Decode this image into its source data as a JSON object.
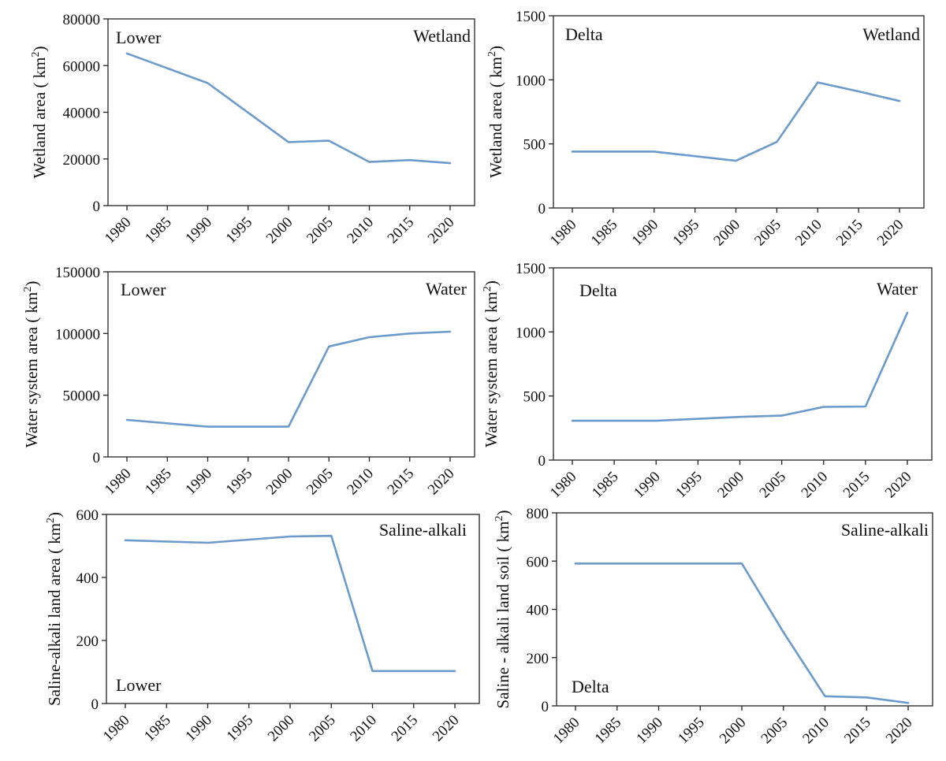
{
  "style": {
    "line_color": "#6b9acb",
    "axis_color": "#222222"
  },
  "chart_data": [
    {
      "type": "line",
      "x": [
        1980,
        1990,
        2000,
        2005,
        2010,
        2015,
        2020
      ],
      "xticks": [
        "1980",
        "1985",
        "1990",
        "1995",
        "2000",
        "2005",
        "2010",
        "2015",
        "2020"
      ],
      "series": [
        {
          "values": [
            65200,
            52500,
            27200,
            27800,
            18700,
            19500,
            18200
          ]
        }
      ],
      "ylim": [
        0,
        80000
      ],
      "yticks": [
        "0",
        "20000",
        "40000",
        "60000",
        "80000"
      ],
      "ylabel": "Wetland area ( km²)",
      "annotations": [
        "Lower",
        "Wetland"
      ]
    },
    {
      "type": "line",
      "x": [
        1980,
        1990,
        2000,
        2005,
        2010,
        2015,
        2020
      ],
      "xticks": [
        "1980",
        "1985",
        "1990",
        "1995",
        "2000",
        "2005",
        "2010",
        "2015",
        "2020"
      ],
      "series": [
        {
          "values": [
            440,
            440,
            368,
            515,
            980,
            910,
            835
          ]
        }
      ],
      "ylim": [
        0,
        1500
      ],
      "yticks": [
        "0",
        "500",
        "1000",
        "1500"
      ],
      "ylabel": "Wetland area ( km²)",
      "annotations": [
        "Delta",
        "Wetland"
      ]
    },
    {
      "type": "line",
      "x": [
        1980,
        1990,
        2000,
        2005,
        2010,
        2015,
        2020
      ],
      "xticks": [
        "1980",
        "1985",
        "1990",
        "1995",
        "2000",
        "2005",
        "2010",
        "2015",
        "2020"
      ],
      "series": [
        {
          "values": [
            30000,
            24500,
            24500,
            89500,
            97000,
            100000,
            101500
          ]
        }
      ],
      "ylim": [
        0,
        150000
      ],
      "yticks": [
        "0",
        "50000",
        "100000",
        "150000"
      ],
      "ylabel": "Water system area ( km²)",
      "annotations": [
        "Lower",
        "Water"
      ]
    },
    {
      "type": "line",
      "x": [
        1980,
        1990,
        2000,
        2005,
        2010,
        2015,
        2020
      ],
      "xticks": [
        "1980",
        "1985",
        "1990",
        "1995",
        "2000",
        "2005",
        "2010",
        "2015",
        "2020"
      ],
      "series": [
        {
          "values": [
            307,
            307,
            337,
            347,
            415,
            418,
            1150
          ]
        }
      ],
      "ylim": [
        0,
        1500
      ],
      "yticks": [
        "0",
        "500",
        "1000",
        "1500"
      ],
      "ylabel": "Water system area ( km²)",
      "annotations": [
        "Delta",
        "Water"
      ]
    },
    {
      "type": "line",
      "x": [
        1980,
        1990,
        2000,
        2005,
        2010,
        2015,
        2020
      ],
      "xticks": [
        "1980",
        "1985",
        "1990",
        "1995",
        "2000",
        "2005",
        "2010",
        "2015",
        "2020"
      ],
      "series": [
        {
          "values": [
            518,
            510,
            530,
            532,
            103,
            103,
            103
          ]
        }
      ],
      "ylim": [
        0,
        600
      ],
      "yticks": [
        "0",
        "200",
        "400",
        "600"
      ],
      "ylabel": "Saline-alkali land area ( km²)",
      "annotations": [
        "Saline-alkali",
        "Lower"
      ]
    },
    {
      "type": "line",
      "x": [
        1980,
        1990,
        2000,
        2005,
        2010,
        2015,
        2020
      ],
      "xticks": [
        "1980",
        "1985",
        "1990",
        "1995",
        "2000",
        "2005",
        "2010",
        "2015",
        "2020"
      ],
      "series": [
        {
          "values": [
            590,
            590,
            590,
            305,
            40,
            35,
            12
          ]
        }
      ],
      "ylim": [
        0,
        800
      ],
      "yticks": [
        "0",
        "200",
        "400",
        "600",
        "800"
      ],
      "ylabel": "Saline - alkali land soil ( km²)",
      "annotations": [
        "Saline-alkali",
        "Delta"
      ]
    }
  ]
}
